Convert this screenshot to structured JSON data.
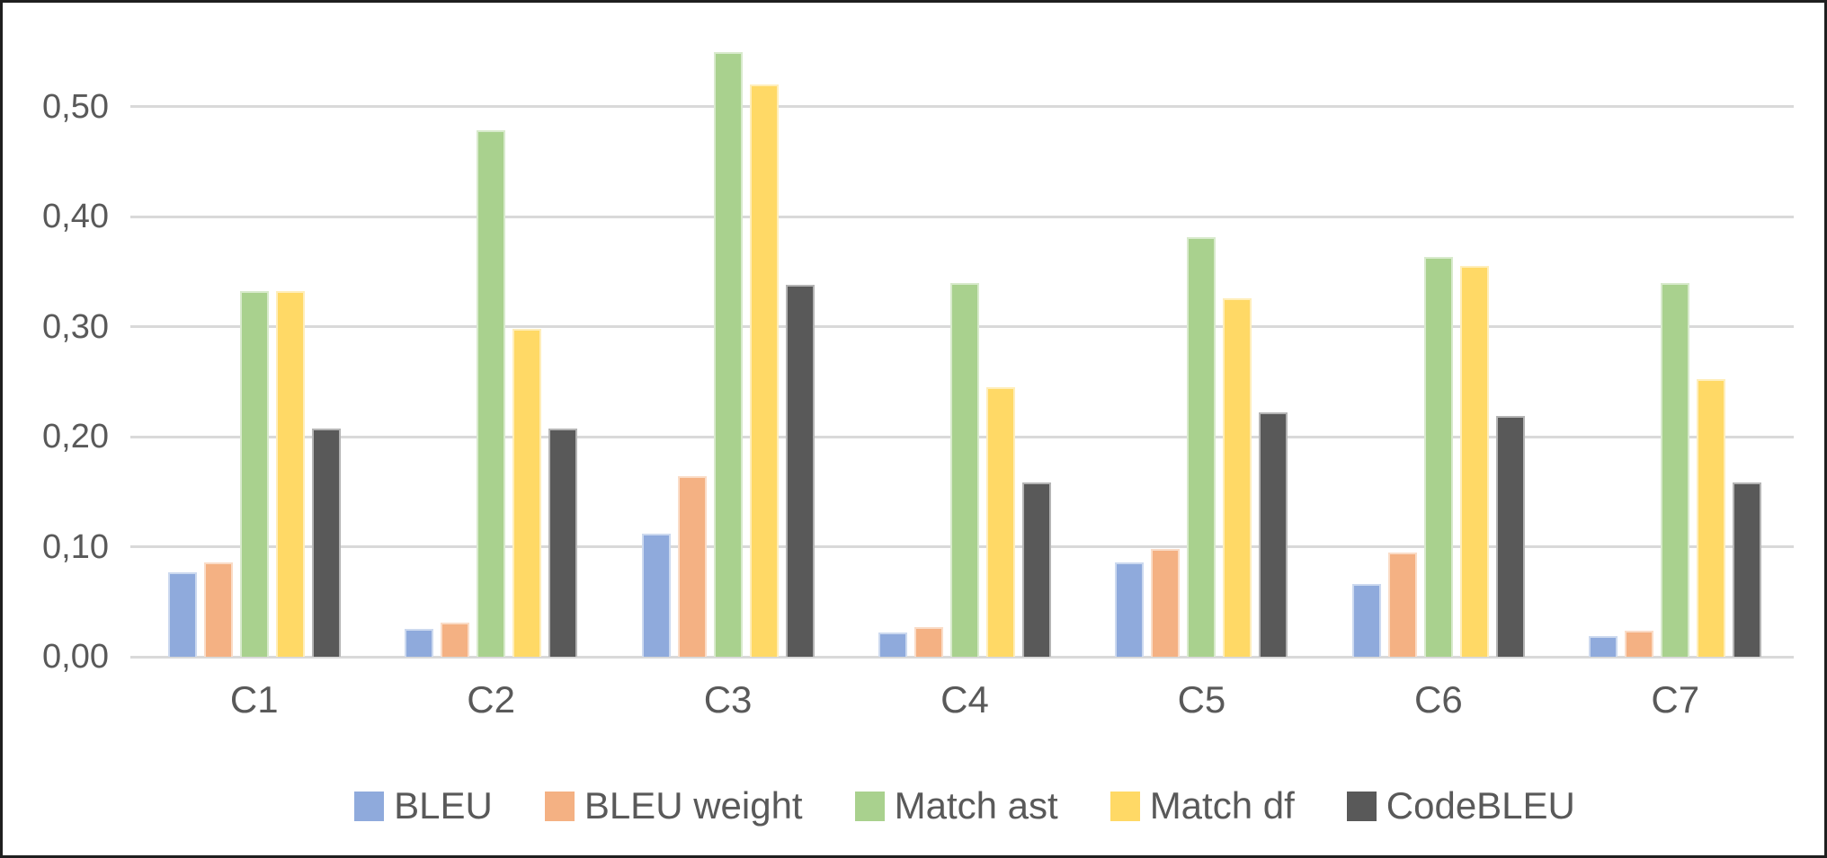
{
  "chart_data": {
    "type": "bar",
    "title": "",
    "categories": [
      "C1",
      "C2",
      "C3",
      "C4",
      "C5",
      "C6",
      "C7"
    ],
    "series": [
      {
        "name": "BLEU",
        "color": "#8FAADC",
        "values": [
          0.077,
          0.025,
          0.112,
          0.022,
          0.086,
          0.066,
          0.019
        ]
      },
      {
        "name": "BLEU weight",
        "color": "#F4B183",
        "values": [
          0.086,
          0.031,
          0.164,
          0.027,
          0.098,
          0.095,
          0.024
        ]
      },
      {
        "name": "Match ast",
        "color": "#A9D18E",
        "values": [
          0.332,
          0.478,
          0.549,
          0.34,
          0.381,
          0.363,
          0.34
        ]
      },
      {
        "name": "Match df",
        "color": "#FFD966",
        "values": [
          0.332,
          0.298,
          0.52,
          0.245,
          0.326,
          0.355,
          0.252
        ]
      },
      {
        "name": "CodeBLEU",
        "color": "#595959",
        "values": [
          0.207,
          0.207,
          0.338,
          0.158,
          0.222,
          0.219,
          0.158
        ]
      }
    ],
    "y_axis": {
      "min": 0,
      "max": 0.5,
      "step": 0.1,
      "tick_labels": [
        "0,00",
        "0,10",
        "0,20",
        "0,30",
        "0,40",
        "0,50"
      ],
      "decimal_separator": ","
    },
    "x_axis": {
      "tick_labels": [
        "C1",
        "C2",
        "C3",
        "C4",
        "C5",
        "C6",
        "C7"
      ]
    },
    "legend": {
      "position": "bottom",
      "entries": [
        "BLEU",
        "BLEU weight",
        "Match ast",
        "Match df",
        "CodeBLEU"
      ]
    },
    "grid": true,
    "colors": {
      "gridline": "#d9d9d9",
      "text": "#595959",
      "frame_border": "#1f1f1f",
      "background": "#ffffff"
    }
  }
}
